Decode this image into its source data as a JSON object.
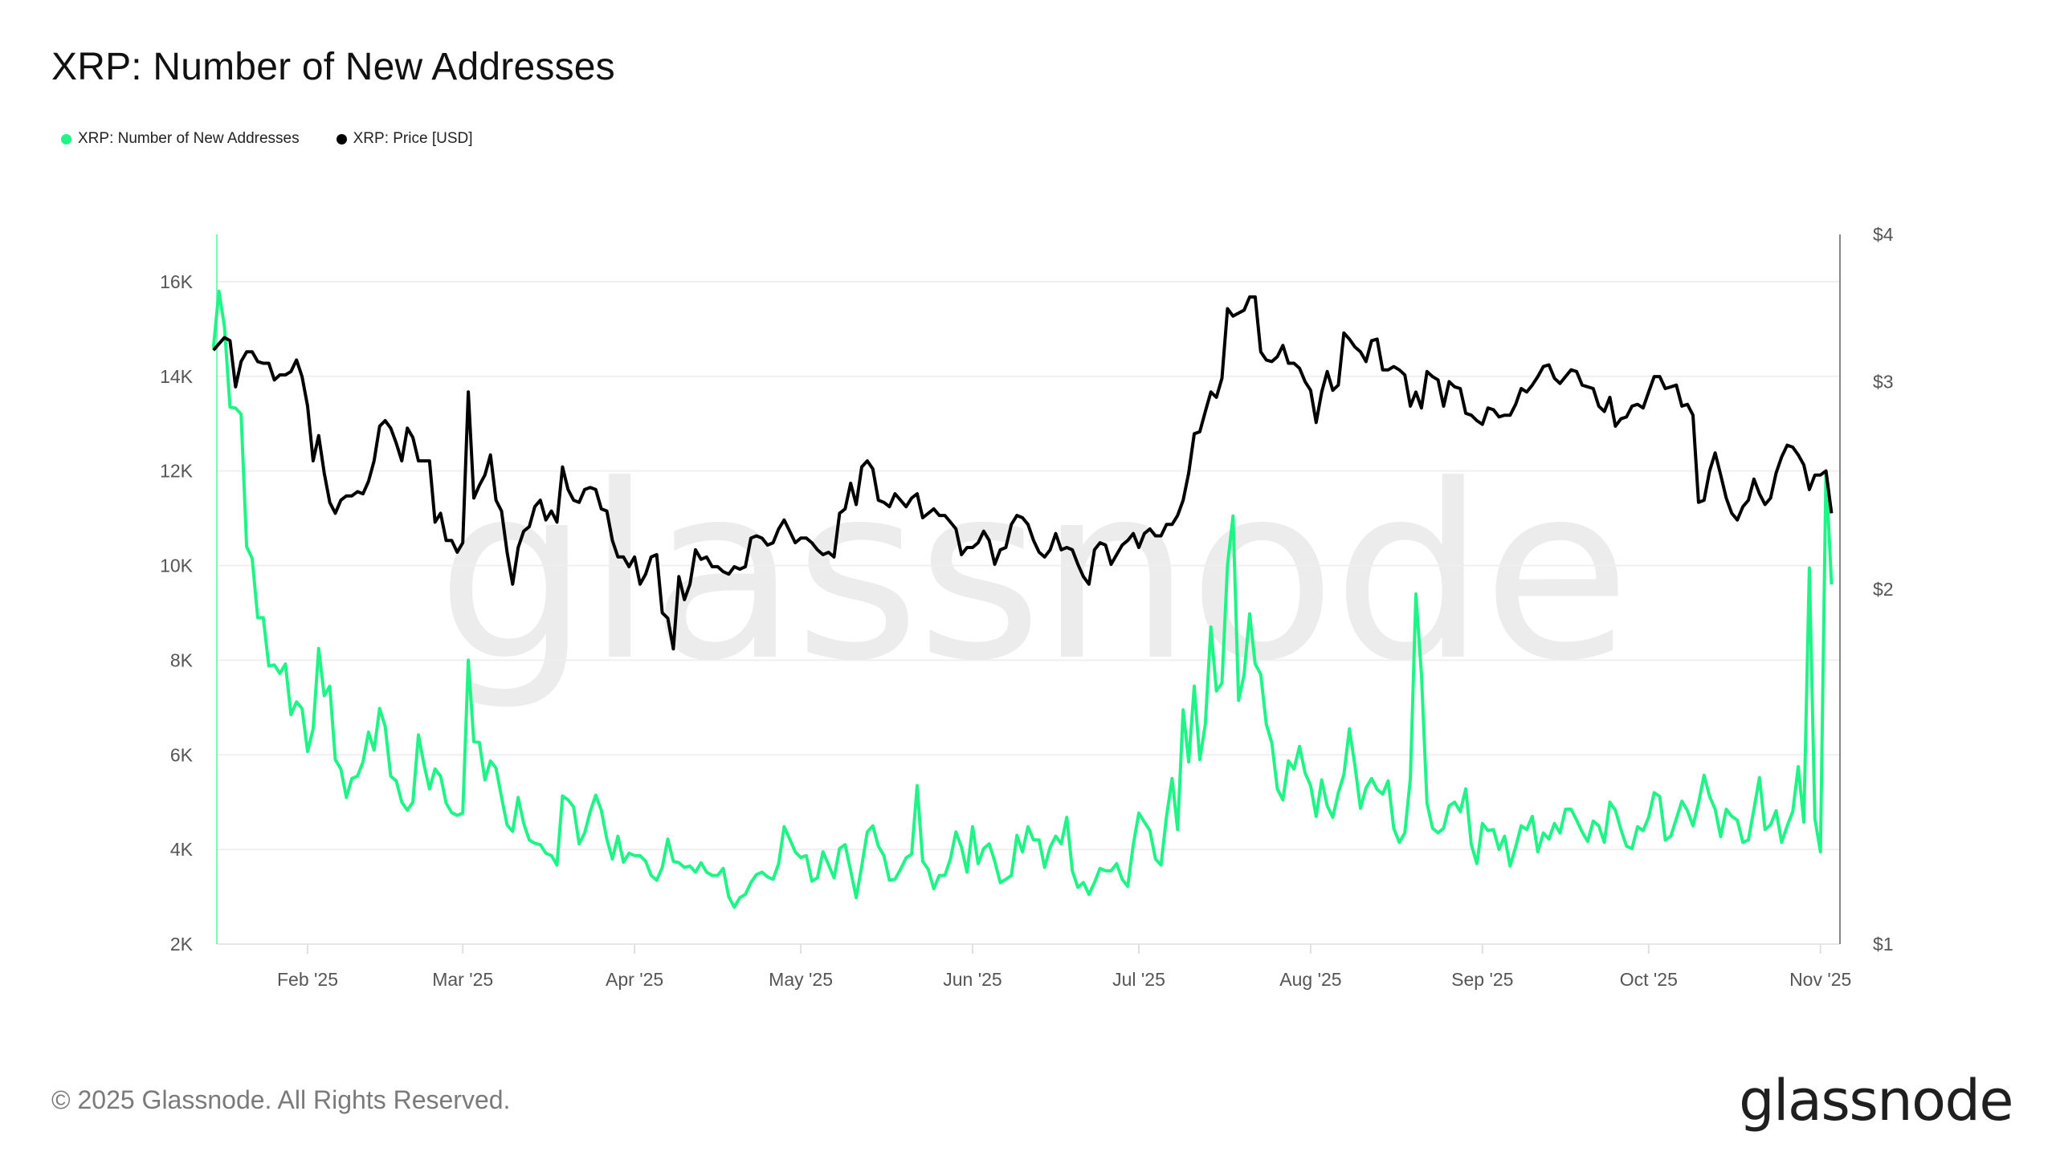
{
  "title": "XRP: Number of New Addresses",
  "legend": [
    {
      "label": "XRP: Number of New Addresses",
      "color": "#1ef586"
    },
    {
      "label": "XRP: Price [USD]",
      "color": "#000000"
    }
  ],
  "watermark": "glassnode",
  "footer": {
    "copyright": "© 2025 Glassnode. All Rights Reserved.",
    "logo": "glassnode"
  },
  "chart_data": {
    "type": "line",
    "title": "XRP: Number of New Addresses",
    "grid": true,
    "legend_position": "top-left",
    "x_ticks": [
      {
        "date": "2025-02-01",
        "label": "Feb '25"
      },
      {
        "date": "2025-03-01",
        "label": "Mar '25"
      },
      {
        "date": "2025-04-01",
        "label": "Apr '25"
      },
      {
        "date": "2025-05-01",
        "label": "May '25"
      },
      {
        "date": "2025-06-01",
        "label": "Jun '25"
      },
      {
        "date": "2025-07-01",
        "label": "Jul '25"
      },
      {
        "date": "2025-08-01",
        "label": "Aug '25"
      },
      {
        "date": "2025-09-01",
        "label": "Sep '25"
      },
      {
        "date": "2025-10-01",
        "label": "Oct '25"
      },
      {
        "date": "2025-11-01",
        "label": "Nov '25"
      }
    ],
    "y_left": {
      "scale": "linear",
      "range": [
        2000,
        17000
      ],
      "ticks": [
        {
          "value": 2000,
          "label": "2K"
        },
        {
          "value": 4000,
          "label": "4K"
        },
        {
          "value": 6000,
          "label": "6K"
        },
        {
          "value": 8000,
          "label": "8K"
        },
        {
          "value": 10000,
          "label": "10K"
        },
        {
          "value": 12000,
          "label": "12K"
        },
        {
          "value": 14000,
          "label": "14K"
        },
        {
          "value": 16000,
          "label": "16K"
        }
      ]
    },
    "y_right": {
      "scale": "log",
      "range": [
        1,
        4
      ],
      "ticks": [
        {
          "value": 1,
          "label": "$1"
        },
        {
          "value": 2,
          "label": "$2"
        },
        {
          "value": 3,
          "label": "$3"
        },
        {
          "value": 4,
          "label": "$4"
        }
      ]
    },
    "x": [
      "2025-01-15",
      "2025-01-16",
      "2025-01-17",
      "2025-01-18",
      "2025-01-19",
      "2025-01-20",
      "2025-01-21",
      "2025-01-22",
      "2025-01-23",
      "2025-01-24",
      "2025-01-25",
      "2025-01-26",
      "2025-01-27",
      "2025-01-28",
      "2025-01-29",
      "2025-01-30",
      "2025-01-31",
      "2025-02-01",
      "2025-02-02",
      "2025-02-03",
      "2025-02-04",
      "2025-02-05",
      "2025-02-06",
      "2025-02-07",
      "2025-02-08",
      "2025-02-09",
      "2025-02-10",
      "2025-02-11",
      "2025-02-12",
      "2025-02-13",
      "2025-02-14",
      "2025-02-15",
      "2025-02-16",
      "2025-02-17",
      "2025-02-18",
      "2025-02-19",
      "2025-02-20",
      "2025-02-21",
      "2025-02-22",
      "2025-02-23",
      "2025-02-24",
      "2025-02-25",
      "2025-02-26",
      "2025-02-27",
      "2025-02-28",
      "2025-03-01",
      "2025-03-02",
      "2025-03-03",
      "2025-03-04",
      "2025-03-05",
      "2025-03-06",
      "2025-03-07",
      "2025-03-08",
      "2025-03-09",
      "2025-03-10",
      "2025-03-11",
      "2025-03-12",
      "2025-03-13",
      "2025-03-14",
      "2025-03-15",
      "2025-03-16",
      "2025-03-17",
      "2025-03-18",
      "2025-03-19",
      "2025-03-20",
      "2025-03-21",
      "2025-03-22",
      "2025-03-23",
      "2025-03-24",
      "2025-03-25",
      "2025-03-26",
      "2025-03-27",
      "2025-03-28",
      "2025-03-29",
      "2025-03-30",
      "2025-03-31",
      "2025-04-01",
      "2025-04-02",
      "2025-04-03",
      "2025-04-04",
      "2025-04-05",
      "2025-04-06",
      "2025-04-07",
      "2025-04-08",
      "2025-04-09",
      "2025-04-10",
      "2025-04-11",
      "2025-04-12",
      "2025-04-13",
      "2025-04-14",
      "2025-04-15",
      "2025-04-16",
      "2025-04-17",
      "2025-04-18",
      "2025-04-19",
      "2025-04-20",
      "2025-04-21",
      "2025-04-22",
      "2025-04-23",
      "2025-04-24",
      "2025-04-25",
      "2025-04-26",
      "2025-04-27",
      "2025-04-28",
      "2025-04-29",
      "2025-04-30",
      "2025-05-01",
      "2025-05-02",
      "2025-05-03",
      "2025-05-04",
      "2025-05-05",
      "2025-05-06",
      "2025-05-07",
      "2025-05-08",
      "2025-05-09",
      "2025-05-10",
      "2025-05-11",
      "2025-05-12",
      "2025-05-13",
      "2025-05-14",
      "2025-05-15",
      "2025-05-16",
      "2025-05-17",
      "2025-05-18",
      "2025-05-19",
      "2025-05-20",
      "2025-05-21",
      "2025-05-22",
      "2025-05-23",
      "2025-05-24",
      "2025-05-25",
      "2025-05-26",
      "2025-05-27",
      "2025-05-28",
      "2025-05-29",
      "2025-05-30",
      "2025-05-31",
      "2025-06-01",
      "2025-06-02",
      "2025-06-03",
      "2025-06-04",
      "2025-06-05",
      "2025-06-06",
      "2025-06-07",
      "2025-06-08",
      "2025-06-09",
      "2025-06-10",
      "2025-06-11",
      "2025-06-12",
      "2025-06-13",
      "2025-06-14",
      "2025-06-15",
      "2025-06-16",
      "2025-06-17",
      "2025-06-18",
      "2025-06-19",
      "2025-06-20",
      "2025-06-21",
      "2025-06-22",
      "2025-06-23",
      "2025-06-24",
      "2025-06-25",
      "2025-06-26",
      "2025-06-27",
      "2025-06-28",
      "2025-06-29",
      "2025-06-30",
      "2025-07-01",
      "2025-07-02",
      "2025-07-03",
      "2025-07-04",
      "2025-07-05",
      "2025-07-06",
      "2025-07-07",
      "2025-07-08",
      "2025-07-09",
      "2025-07-10",
      "2025-07-11",
      "2025-07-12",
      "2025-07-13",
      "2025-07-14",
      "2025-07-15",
      "2025-07-16",
      "2025-07-17",
      "2025-07-18",
      "2025-07-19",
      "2025-07-20",
      "2025-07-21",
      "2025-07-22",
      "2025-07-23",
      "2025-07-24",
      "2025-07-25",
      "2025-07-26",
      "2025-07-27",
      "2025-07-28",
      "2025-07-29",
      "2025-07-30",
      "2025-07-31",
      "2025-08-01",
      "2025-08-02",
      "2025-08-03",
      "2025-08-04",
      "2025-08-05",
      "2025-08-06",
      "2025-08-07",
      "2025-08-08",
      "2025-08-09",
      "2025-08-10",
      "2025-08-11",
      "2025-08-12",
      "2025-08-13",
      "2025-08-14",
      "2025-08-15",
      "2025-08-16",
      "2025-08-17",
      "2025-08-18",
      "2025-08-19",
      "2025-08-20",
      "2025-08-21",
      "2025-08-22",
      "2025-08-23",
      "2025-08-24",
      "2025-08-25",
      "2025-08-26",
      "2025-08-27",
      "2025-08-28",
      "2025-08-29",
      "2025-08-30",
      "2025-08-31",
      "2025-09-01",
      "2025-09-02",
      "2025-09-03",
      "2025-09-04",
      "2025-09-05",
      "2025-09-06",
      "2025-09-07",
      "2025-09-08",
      "2025-09-09",
      "2025-09-10",
      "2025-09-11",
      "2025-09-12",
      "2025-09-13",
      "2025-09-14",
      "2025-09-15",
      "2025-09-16",
      "2025-09-17",
      "2025-09-18",
      "2025-09-19",
      "2025-09-20",
      "2025-09-21",
      "2025-09-22",
      "2025-09-23",
      "2025-09-24",
      "2025-09-25",
      "2025-09-26",
      "2025-09-27",
      "2025-09-28",
      "2025-09-29",
      "2025-09-30",
      "2025-10-01",
      "2025-10-02",
      "2025-10-03",
      "2025-10-04",
      "2025-10-05",
      "2025-10-06",
      "2025-10-07",
      "2025-10-08",
      "2025-10-09",
      "2025-10-10",
      "2025-10-11",
      "2025-10-12",
      "2025-10-13",
      "2025-10-14",
      "2025-10-15",
      "2025-10-16",
      "2025-10-17",
      "2025-10-18",
      "2025-10-19",
      "2025-10-20",
      "2025-10-21",
      "2025-10-22",
      "2025-10-23",
      "2025-10-24",
      "2025-10-25",
      "2025-10-26",
      "2025-10-27",
      "2025-10-28",
      "2025-10-29",
      "2025-10-30",
      "2025-10-31",
      "2025-11-01",
      "2025-11-02",
      "2025-11-03"
    ],
    "series": [
      {
        "name": "XRP: Number of New Addresses",
        "axis": "left",
        "color": "#1ef586",
        "values": [
          14600,
          15800,
          15050,
          13350,
          13330,
          13200,
          10400,
          10150,
          8900,
          8900,
          7880,
          7900,
          7720,
          7920,
          6850,
          7120,
          6980,
          6070,
          6550,
          8250,
          7250,
          7450,
          5900,
          5700,
          5100,
          5500,
          5550,
          5850,
          6480,
          6100,
          6980,
          6600,
          5550,
          5450,
          5000,
          4830,
          5000,
          6420,
          5800,
          5280,
          5700,
          5550,
          4980,
          4780,
          4720,
          4770,
          8000,
          6280,
          6260,
          5470,
          5870,
          5720,
          5100,
          4520,
          4380,
          5100,
          4550,
          4200,
          4130,
          4100,
          3920,
          3870,
          3670,
          5130,
          5050,
          4900,
          4120,
          4350,
          4800,
          5150,
          4830,
          4220,
          3800,
          4280,
          3730,
          3920,
          3870,
          3870,
          3750,
          3450,
          3350,
          3620,
          4220,
          3750,
          3720,
          3620,
          3650,
          3520,
          3720,
          3520,
          3450,
          3450,
          3600,
          3000,
          2780,
          2980,
          3050,
          3300,
          3470,
          3520,
          3420,
          3370,
          3700,
          4480,
          4220,
          3950,
          3830,
          3870,
          3330,
          3400,
          3950,
          3680,
          3400,
          4020,
          4100,
          3550,
          2980,
          3650,
          4370,
          4500,
          4070,
          3870,
          3350,
          3370,
          3580,
          3820,
          3900,
          5350,
          3750,
          3580,
          3170,
          3450,
          3450,
          3800,
          4370,
          4050,
          3520,
          4480,
          3700,
          4020,
          4120,
          3750,
          3300,
          3370,
          3450,
          4300,
          3950,
          4480,
          4200,
          4200,
          3620,
          4050,
          4280,
          4120,
          4680,
          3550,
          3200,
          3300,
          3050,
          3300,
          3600,
          3550,
          3550,
          3700,
          3370,
          3220,
          4100,
          4770,
          4580,
          4400,
          3800,
          3670,
          4700,
          5500,
          4420,
          6950,
          5850,
          7450,
          5900,
          6650,
          8700,
          7350,
          7520,
          10000,
          11050,
          7150,
          7700,
          8980,
          7920,
          7700,
          6650,
          6250,
          5280,
          5050,
          5870,
          5700,
          6180,
          5620,
          5350,
          4700,
          5470,
          4920,
          4680,
          5200,
          5580,
          6550,
          5770,
          4870,
          5300,
          5500,
          5270,
          5170,
          5450,
          4450,
          4150,
          4350,
          5500,
          9400,
          7700,
          4980,
          4450,
          4350,
          4450,
          4920,
          5000,
          4800,
          5280,
          4100,
          3700,
          4550,
          4400,
          4420,
          4000,
          4280,
          3650,
          4050,
          4500,
          4420,
          4700,
          3950,
          4350,
          4220,
          4550,
          4350,
          4850,
          4850,
          4620,
          4370,
          4170,
          4600,
          4500,
          4150,
          5000,
          4830,
          4420,
          4070,
          4020,
          4480,
          4400,
          4680,
          5200,
          5120,
          4200,
          4280,
          4650,
          5020,
          4820,
          4500,
          4980,
          5570,
          5120,
          4850,
          4270,
          4850,
          4700,
          4620,
          4150,
          4200,
          4850,
          5520,
          4420,
          4520,
          4820,
          4150,
          4500,
          4800,
          5750,
          4580,
          9950,
          4650,
          3950,
          12000,
          9600
        ]
      },
      {
        "name": "XRP: Price [USD]",
        "axis": "right",
        "color": "#000000",
        "values": [
          3.19,
          3.23,
          3.27,
          3.25,
          2.97,
          3.12,
          3.18,
          3.18,
          3.12,
          3.11,
          3.11,
          3.01,
          3.04,
          3.04,
          3.06,
          3.13,
          3.03,
          2.86,
          2.57,
          2.7,
          2.51,
          2.37,
          2.32,
          2.38,
          2.4,
          2.4,
          2.42,
          2.41,
          2.47,
          2.57,
          2.75,
          2.78,
          2.74,
          2.66,
          2.57,
          2.74,
          2.69,
          2.57,
          2.57,
          2.57,
          2.28,
          2.32,
          2.2,
          2.2,
          2.15,
          2.19,
          2.94,
          2.39,
          2.45,
          2.5,
          2.6,
          2.38,
          2.33,
          2.15,
          2.02,
          2.17,
          2.24,
          2.26,
          2.35,
          2.38,
          2.29,
          2.33,
          2.28,
          2.54,
          2.43,
          2.38,
          2.37,
          2.43,
          2.44,
          2.43,
          2.34,
          2.33,
          2.2,
          2.13,
          2.13,
          2.09,
          2.13,
          2.02,
          2.06,
          2.13,
          2.14,
          1.91,
          1.89,
          1.78,
          2.05,
          1.96,
          2.02,
          2.16,
          2.12,
          2.13,
          2.09,
          2.09,
          2.07,
          2.06,
          2.09,
          2.08,
          2.09,
          2.21,
          2.22,
          2.21,
          2.18,
          2.19,
          2.25,
          2.29,
          2.24,
          2.19,
          2.21,
          2.21,
          2.19,
          2.16,
          2.14,
          2.15,
          2.13,
          2.32,
          2.34,
          2.46,
          2.36,
          2.54,
          2.57,
          2.53,
          2.38,
          2.37,
          2.35,
          2.41,
          2.38,
          2.35,
          2.39,
          2.41,
          2.3,
          2.32,
          2.34,
          2.31,
          2.31,
          2.28,
          2.25,
          2.14,
          2.17,
          2.17,
          2.19,
          2.24,
          2.2,
          2.1,
          2.16,
          2.17,
          2.27,
          2.31,
          2.3,
          2.27,
          2.2,
          2.15,
          2.13,
          2.16,
          2.23,
          2.16,
          2.17,
          2.16,
          2.1,
          2.05,
          2.02,
          2.16,
          2.19,
          2.18,
          2.1,
          2.14,
          2.18,
          2.2,
          2.23,
          2.17,
          2.23,
          2.25,
          2.22,
          2.22,
          2.27,
          2.27,
          2.31,
          2.38,
          2.51,
          2.71,
          2.72,
          2.83,
          2.94,
          2.91,
          3.02,
          3.46,
          3.41,
          3.43,
          3.45,
          3.54,
          3.54,
          3.18,
          3.13,
          3.12,
          3.15,
          3.22,
          3.11,
          3.11,
          3.08,
          3.0,
          2.95,
          2.77,
          2.94,
          3.06,
          2.95,
          2.98,
          3.3,
          3.26,
          3.21,
          3.18,
          3.12,
          3.25,
          3.26,
          3.07,
          3.07,
          3.09,
          3.07,
          3.04,
          2.86,
          2.94,
          2.85,
          3.06,
          3.03,
          3.01,
          2.86,
          3.0,
          2.97,
          2.96,
          2.82,
          2.81,
          2.78,
          2.76,
          2.85,
          2.84,
          2.8,
          2.81,
          2.81,
          2.87,
          2.96,
          2.94,
          2.98,
          3.03,
          3.09,
          3.1,
          3.02,
          2.99,
          3.03,
          3.07,
          3.06,
          2.98,
          2.97,
          2.96,
          2.86,
          2.83,
          2.91,
          2.75,
          2.79,
          2.8,
          2.86,
          2.87,
          2.85,
          2.94,
          3.03,
          3.03,
          2.96,
          2.97,
          2.98,
          2.86,
          2.87,
          2.81,
          2.37,
          2.38,
          2.52,
          2.61,
          2.5,
          2.39,
          2.32,
          2.29,
          2.35,
          2.38,
          2.48,
          2.41,
          2.36,
          2.39,
          2.51,
          2.59,
          2.65,
          2.64,
          2.6,
          2.55,
          2.43,
          2.5,
          2.5,
          2.52,
          2.32
        ]
      }
    ]
  }
}
